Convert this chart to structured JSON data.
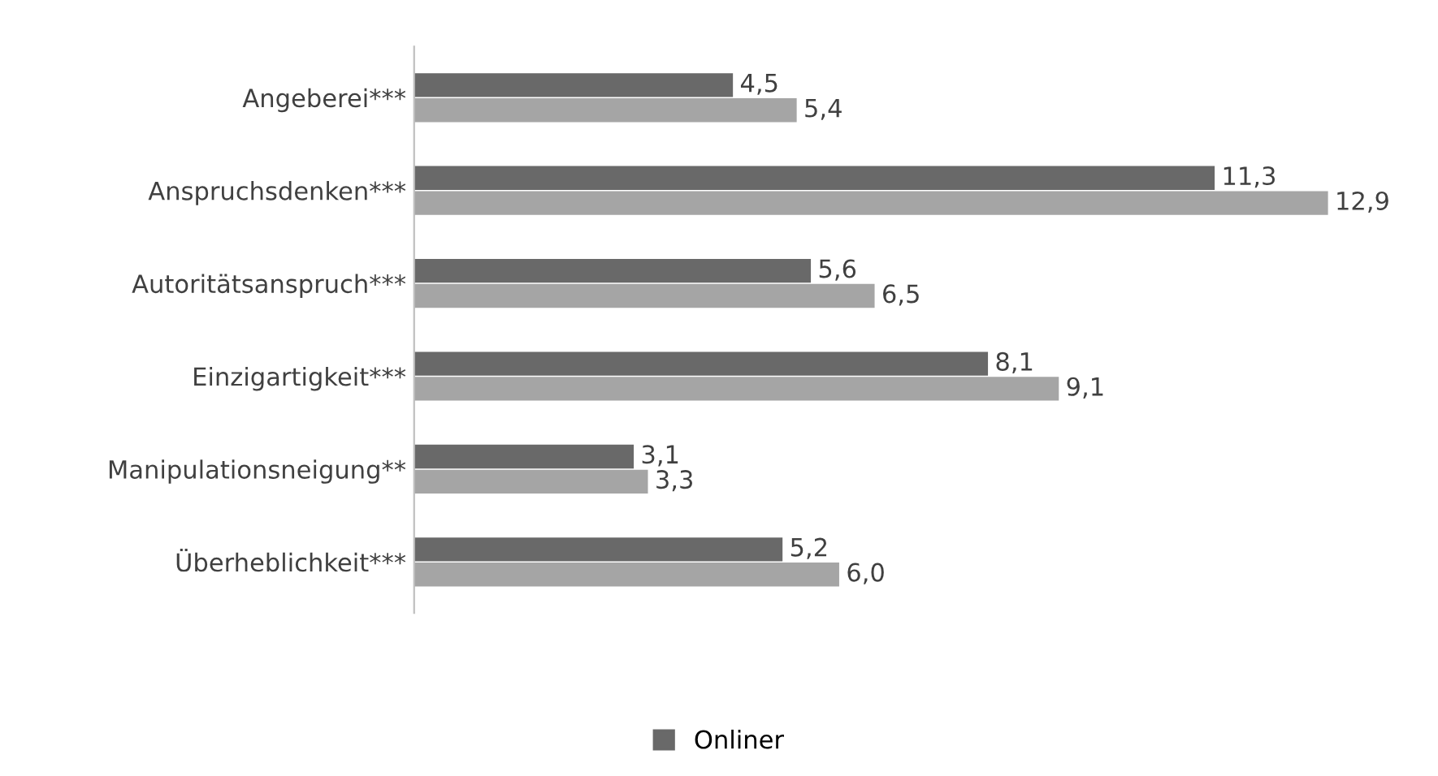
{
  "chart_data": {
    "type": "bar",
    "orientation": "horizontal",
    "categories": [
      "Angeberei***",
      "Anspruchsdenken***",
      "Autoritätsanspruch***",
      "Einzigartigkeit***",
      "Manipulationsneigung**",
      "Überheblichkeit***"
    ],
    "series": [
      {
        "name": "Onliner",
        "color": "#696969",
        "values": [
          4.5,
          11.3,
          5.6,
          8.1,
          3.1,
          5.2
        ],
        "value_labels": [
          "4,5",
          "11,3",
          "5,6",
          "8,1",
          "3,1",
          "5,2"
        ]
      },
      {
        "color": "#a5a5a5",
        "values": [
          5.4,
          12.9,
          6.5,
          9.1,
          3.3,
          6.0
        ],
        "value_labels": [
          "5,4",
          "12,9",
          "6,5",
          "9,1",
          "3,3",
          "6,0"
        ]
      }
    ],
    "tick_labels": "y",
    "legend": "bottom",
    "grid": false
  }
}
